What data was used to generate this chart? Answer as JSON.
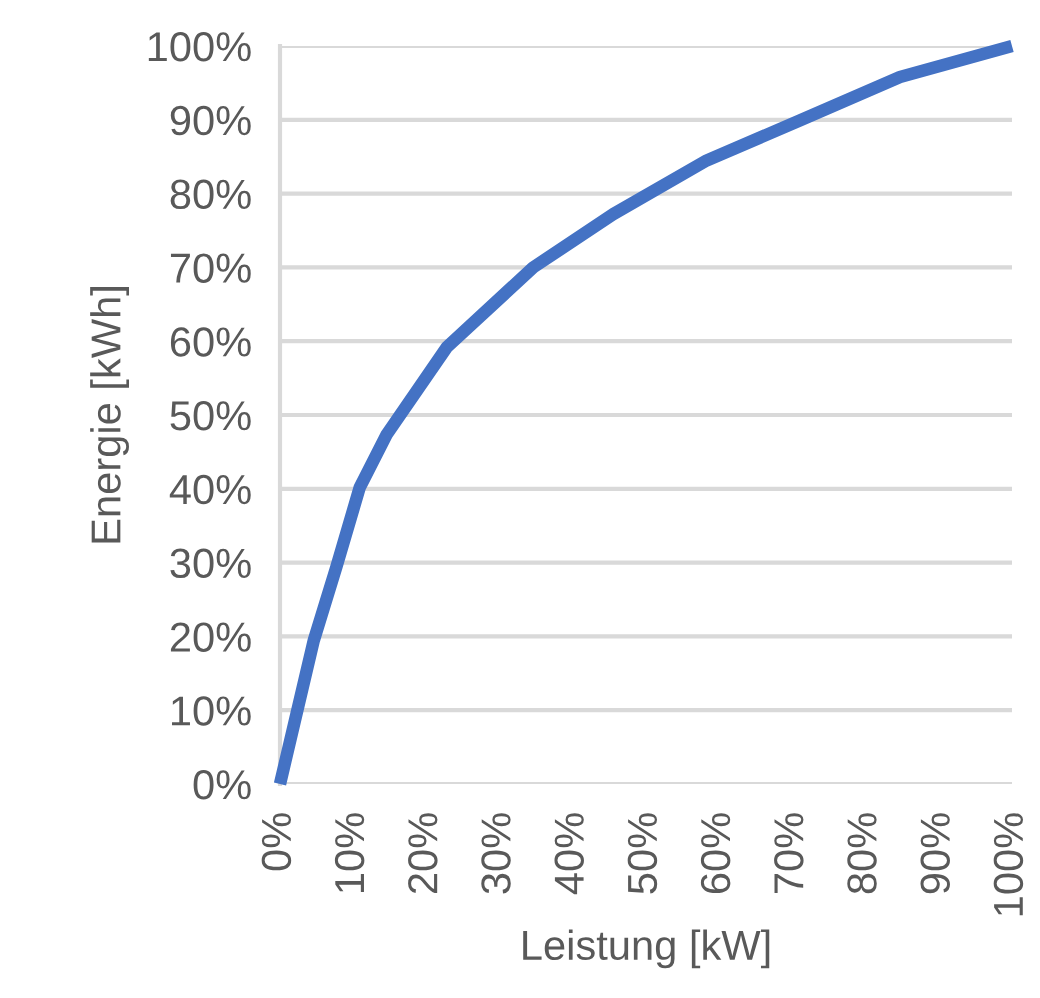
{
  "chart_data": {
    "type": "line",
    "xlabel": "Leistung [kW]",
    "ylabel": "Energie [kWh]",
    "x": [
      0,
      4.6,
      7.7,
      10.9,
      14.6,
      22.8,
      34.6,
      45.5,
      58.3,
      71,
      84.7,
      100
    ],
    "series": [
      {
        "color": "#4472c4",
        "values": [
          0,
          19.4,
          29.4,
          40.2,
          47.4,
          59.2,
          70,
          77.2,
          84.5,
          89.9,
          95.8,
          100
        ]
      }
    ],
    "xlim": [
      0,
      100
    ],
    "ylim": [
      0,
      100
    ],
    "xticks": [
      {
        "value": 0,
        "label": "0%"
      },
      {
        "value": 10,
        "label": "10%"
      },
      {
        "value": 20,
        "label": "20%"
      },
      {
        "value": 30,
        "label": "30%"
      },
      {
        "value": 40,
        "label": "40%"
      },
      {
        "value": 50,
        "label": "50%"
      },
      {
        "value": 60,
        "label": "60%"
      },
      {
        "value": 70,
        "label": "70%"
      },
      {
        "value": 80,
        "label": "80%"
      },
      {
        "value": 90,
        "label": "90%"
      },
      {
        "value": 100,
        "label": "100%"
      }
    ],
    "yticks": [
      {
        "value": 0,
        "label": "0%"
      },
      {
        "value": 10,
        "label": "10%"
      },
      {
        "value": 20,
        "label": "20%"
      },
      {
        "value": 30,
        "label": "30%"
      },
      {
        "value": 40,
        "label": "40%"
      },
      {
        "value": 50,
        "label": "50%"
      },
      {
        "value": 60,
        "label": "60%"
      },
      {
        "value": 70,
        "label": "70%"
      },
      {
        "value": 80,
        "label": "80%"
      },
      {
        "value": 90,
        "label": "90%"
      },
      {
        "value": 100,
        "label": "100%"
      }
    ],
    "grid": "y",
    "marker": "none",
    "line_style": "solid"
  }
}
